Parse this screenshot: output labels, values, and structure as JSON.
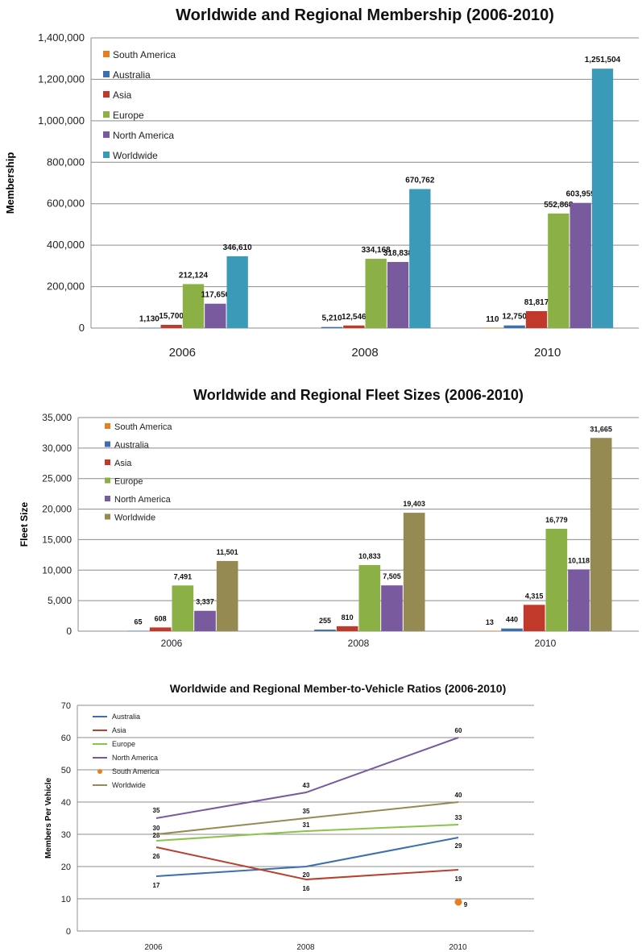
{
  "chart_data": [
    {
      "type": "bar",
      "title": "Worldwide and Regional Membership (2006-2010)",
      "xlabel": "",
      "ylabel": "Membership",
      "categories": [
        "2006",
        "2008",
        "2010"
      ],
      "ylim": [
        0,
        1400000
      ],
      "yticks": [
        "0",
        "200,000",
        "400,000",
        "600,000",
        "800,000",
        "1,000,000",
        "1,200,000",
        "1,400,000"
      ],
      "grid": true,
      "legend": "top-left",
      "series": [
        {
          "name": "South America",
          "color": "#e67e22",
          "values": [
            null,
            null,
            110
          ],
          "labels": [
            "",
            "",
            "110"
          ]
        },
        {
          "name": "Australia",
          "color": "#3d6fb0",
          "values": [
            1130,
            5210,
            12750
          ],
          "labels": [
            "1,130",
            "5,210",
            "12,750"
          ]
        },
        {
          "name": "Asia",
          "color": "#c0392b",
          "values": [
            15700,
            12546,
            81817
          ],
          "labels": [
            "15,700",
            "12,546",
            "81,817"
          ]
        },
        {
          "name": "Europe",
          "color": "#8bb146",
          "values": [
            212124,
            334168,
            552868
          ],
          "labels": [
            "212,124",
            "334,168",
            "552,868"
          ]
        },
        {
          "name": "North America",
          "color": "#7a5a9e",
          "values": [
            117656,
            318838,
            603959
          ],
          "labels": [
            "117,656",
            "318,838",
            "603,959"
          ]
        },
        {
          "name": "Worldwide",
          "color": "#3a9ab8",
          "values": [
            346610,
            670762,
            1251504
          ],
          "labels": [
            "346,610",
            "670,762",
            "1,251,504"
          ]
        }
      ]
    },
    {
      "type": "bar",
      "title": "Worldwide and Regional Fleet Sizes (2006-2010)",
      "xlabel": "",
      "ylabel": "Fleet Size",
      "categories": [
        "2006",
        "2008",
        "2010"
      ],
      "ylim": [
        0,
        35000
      ],
      "yticks": [
        "0",
        "5,000",
        "10,000",
        "15,000",
        "20,000",
        "25,000",
        "30,000",
        "35,000"
      ],
      "grid": true,
      "legend": "top-left",
      "series": [
        {
          "name": "South America",
          "color": "#e67e22",
          "values": [
            null,
            null,
            13
          ],
          "labels": [
            "",
            "",
            "13"
          ]
        },
        {
          "name": "Australia",
          "color": "#3d6fb0",
          "values": [
            65,
            255,
            440
          ],
          "labels": [
            "65",
            "255",
            "440"
          ]
        },
        {
          "name": "Asia",
          "color": "#c0392b",
          "values": [
            608,
            810,
            4315
          ],
          "labels": [
            "608",
            "810",
            "4,315"
          ]
        },
        {
          "name": "Europe",
          "color": "#8bb146",
          "values": [
            7491,
            10833,
            16779
          ],
          "labels": [
            "7,491",
            "10,833",
            "16,779"
          ]
        },
        {
          "name": "North America",
          "color": "#7a5a9e",
          "values": [
            3337,
            7505,
            10118
          ],
          "labels": [
            "3,337",
            "7,505",
            "10,118"
          ]
        },
        {
          "name": "Worldwide",
          "color": "#968a53",
          "values": [
            11501,
            19403,
            31665
          ],
          "labels": [
            "11,501",
            "19,403",
            "31,665"
          ]
        }
      ]
    },
    {
      "type": "line",
      "title": "Worldwide and Regional Member-to-Vehicle Ratios (2006-2010)",
      "xlabel": "",
      "ylabel": "Members Per Vehicle",
      "x": [
        "2006",
        "2008",
        "2010"
      ],
      "ylim": [
        0,
        70
      ],
      "yticks": [
        "0",
        "10",
        "20",
        "30",
        "40",
        "50",
        "60",
        "70"
      ],
      "grid": true,
      "legend": "top-left",
      "series": [
        {
          "name": "Australia",
          "color": "#3d6fb0",
          "values": [
            17,
            20,
            29
          ],
          "labels": [
            "17",
            "20",
            "29"
          ]
        },
        {
          "name": "Asia",
          "color": "#b8402f",
          "values": [
            26,
            16,
            19
          ],
          "labels": [
            "26",
            "16",
            "19"
          ]
        },
        {
          "name": "Europe",
          "color": "#8bc34a",
          "values": [
            28,
            31,
            33
          ],
          "labels": [
            "28",
            "31",
            "33"
          ]
        },
        {
          "name": "North America",
          "color": "#7a5a9e",
          "values": [
            35,
            43,
            60
          ],
          "labels": [
            "35",
            "43",
            "60"
          ]
        },
        {
          "name": "South America",
          "color": "#e67e22",
          "marker": "point",
          "values": [
            null,
            null,
            9
          ],
          "labels": [
            "",
            "",
            "9"
          ]
        },
        {
          "name": "Worldwide",
          "color": "#968a53",
          "values": [
            30,
            35,
            40
          ],
          "labels": [
            "30",
            "35",
            "40"
          ]
        }
      ]
    }
  ]
}
